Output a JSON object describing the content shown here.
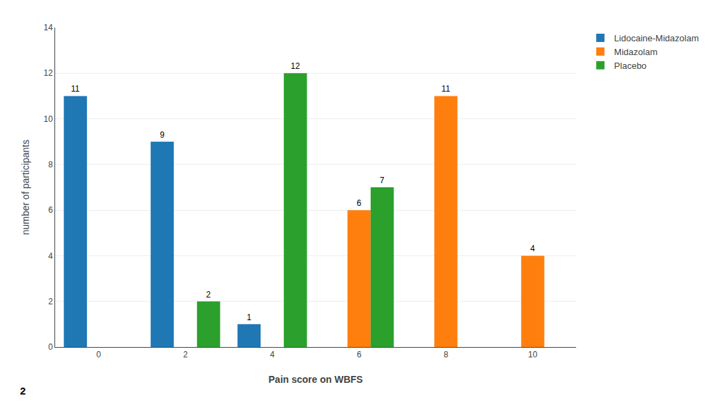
{
  "chart_data": {
    "type": "bar",
    "categories": [
      0,
      2,
      4,
      6,
      8,
      10
    ],
    "series": [
      {
        "name": "Lidocaine-Midazolam",
        "values": [
          11,
          9,
          1,
          0,
          0,
          0
        ]
      },
      {
        "name": "Midazolam",
        "values": [
          0,
          0,
          0,
          6,
          11,
          4
        ]
      },
      {
        "name": "Placebo",
        "values": [
          0,
          2,
          12,
          7,
          0,
          0
        ]
      }
    ],
    "xlabel": "Pain score on WBFS",
    "ylabel": "number of participants",
    "ylim": [
      0,
      14
    ],
    "yticks": [
      0,
      2,
      4,
      6,
      8,
      10,
      12,
      14
    ],
    "grid": true,
    "legend": "upper right",
    "data_labels": true,
    "annotations": [
      "2"
    ]
  }
}
